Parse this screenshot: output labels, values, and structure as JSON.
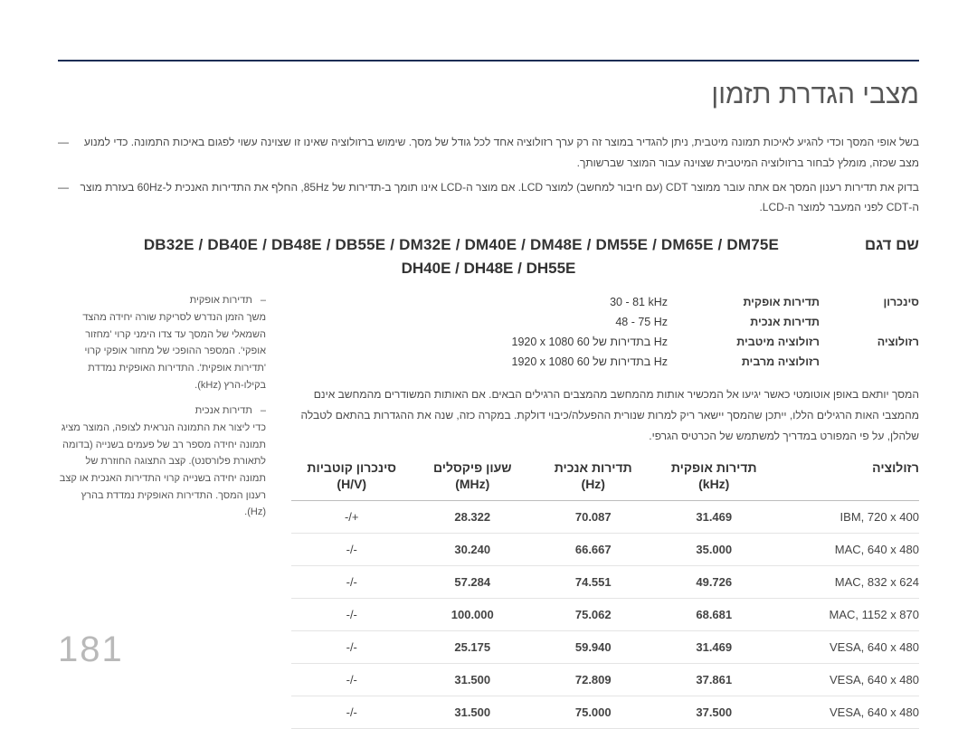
{
  "page_number": "181",
  "title": "מצבי הגדרת תזמון",
  "intro": [
    "בשל אופי המסך וכדי להגיע לאיכות תמונה מיטבית, ניתן להגדיר במוצר זה רק ערך רזולוציה אחד לכל גודל של מסך. שימוש ברזולוציה שאינו זו שצוינה עשוי לפגום באיכות התמונה. כדי למנוע מצב שכזה, מומלץ לבחור ברזולוציה המיטבית שצוינה עבור המוצר שברשותך.",
    "בדוק את תדירות רענון המסך אם אתה עובר ממוצר CDT (עם חיבור למחשב) למוצר LCD. אם מוצר ה-LCD אינו תומך ב-תדירות של 85Hz, החלף את התדירות האנכית ל-60Hz בעזרת מוצר ה-CDT לפני המעבר למוצר ה-LCD."
  ],
  "model": {
    "label": "שם דגם",
    "line1": "DB32E / DB40E / DB48E / DB55E / DM32E / DM40E / DM48E / DM55E / DM65E / DM75E",
    "line2": "DH40E / DH48E / DH55E"
  },
  "notes": [
    {
      "t": "תדירות אופקית",
      "b": "משך הזמן הנדרש לסריקת שורה יחידה מהצד השמאלי של המסך עד צדו הימני קרוי 'מחזור אופקי'. המספר ההופכי של מחזור אופקי קרוי 'תדירות אופקית'. התדירות האופקית נמדדת בקילו-הרץ (kHz)."
    },
    {
      "t": "תדירות אנכית",
      "b": "כדי ליצור את התמונה הנראית לצופה, המוצר מציג תמונה יחידה מספר רב של פעמים בשנייה (בדומה לתאורת פלורסנט). קצב התצוגה החוזרת של תמונה יחידה בשנייה קרוי התדירות האנכית או קצב רענון המסך. התדירות האופקית נמדדת בהרץ (Hz)."
    }
  ],
  "spec": {
    "sync_label": "סינכרון",
    "hfreq_label": "תדירות אופקית",
    "hfreq_val": "30 - 81 kHz",
    "vfreq_label": "תדירות אנכית",
    "vfreq_val": "48 - 75 Hz",
    "res_label": "רזולוציה",
    "optres_label": "רזולוציה מיטבית",
    "optres_val": "‎1920 x 1080 בתדירות של 60 Hz",
    "maxres_label": "רזולוציה מרבית",
    "maxres_val": "‎1920 x 1080 בתדירות של 60 Hz"
  },
  "para2": "המסך יותאם באופן אוטומטי כאשר יגיעו אל המכשיר אותות מהמחשב מהמצבים הרגילים הבאים. אם האותות המשודרים מהמחשב אינם מהמצבי האות הרגילים הללו, ייתכן שהמסך יישאר ריק למרות שנורית ההפעלה/כיבוי דולקת. במקרה כזה, שנה את ההגדרות בהתאם לטבלה שלהלן, על פי המפורט במדריך למשתמש של הכרטיס הגרפי.",
  "modes": {
    "headers": {
      "res": "רזולוציה",
      "hf": "תדירות אופקית",
      "hf_u": "(kHz)",
      "vf": "תדירות אנכית",
      "vf_u": "(Hz)",
      "pc": "שעון פיקסלים",
      "pc_u": "(MHz)",
      "pol": "סינכרון קוטביות",
      "pol_u": "(H/V)"
    },
    "rows": [
      {
        "res": "IBM, ‎720 x 400",
        "hf": "31.469",
        "vf": "70.087",
        "pc": "28.322",
        "pol": "-/+"
      },
      {
        "res": "MAC, ‎640 x 480",
        "hf": "35.000",
        "vf": "66.667",
        "pc": "30.240",
        "pol": "-/-"
      },
      {
        "res": "MAC, ‎832 x 624",
        "hf": "49.726",
        "vf": "74.551",
        "pc": "57.284",
        "pol": "-/-"
      },
      {
        "res": "MAC, ‎1152 x 870",
        "hf": "68.681",
        "vf": "75.062",
        "pc": "100.000",
        "pol": "-/-"
      },
      {
        "res": "VESA, ‎640 x 480",
        "hf": "31.469",
        "vf": "59.940",
        "pc": "25.175",
        "pol": "-/-"
      },
      {
        "res": "VESA, ‎640 x 480",
        "hf": "37.861",
        "vf": "72.809",
        "pc": "31.500",
        "pol": "-/-"
      },
      {
        "res": "VESA, ‎640 x 480",
        "hf": "37.500",
        "vf": "75.000",
        "pc": "31.500",
        "pol": "-/-"
      }
    ]
  },
  "style": {
    "rule_color": "#1b2d55",
    "border_color": "#bdbdbd",
    "row_border": "#e4e4e4",
    "text_color": "#3a3a3a",
    "muted": "#b9b9b9"
  }
}
